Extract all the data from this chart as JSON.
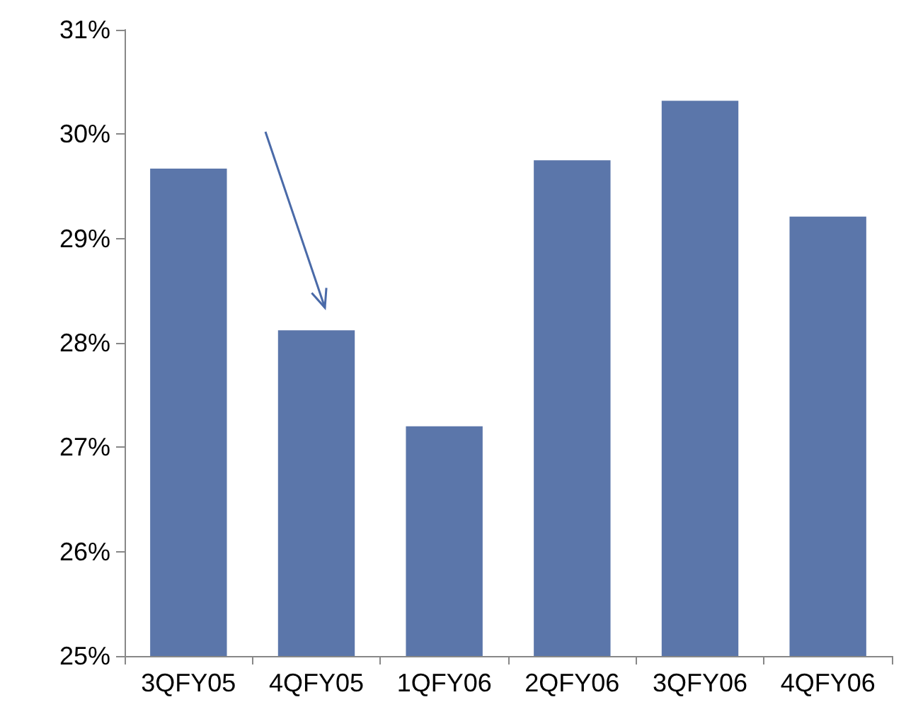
{
  "chart_data": {
    "type": "bar",
    "categories": [
      "3QFY05",
      "4QFY05",
      "1QFY06",
      "2QFY06",
      "3QFY06",
      "4QFY06"
    ],
    "values": [
      29.67,
      28.12,
      27.2,
      29.75,
      30.32,
      29.21
    ],
    "color": "#5b76aa",
    "ylim": [
      25,
      31
    ],
    "yticks": [
      {
        "value": 25,
        "label": "25%"
      },
      {
        "value": 26,
        "label": "26%"
      },
      {
        "value": 27,
        "label": "27%"
      },
      {
        "value": 28,
        "label": "28%"
      },
      {
        "value": 29,
        "label": "29%"
      },
      {
        "value": 30,
        "label": "30%"
      },
      {
        "value": 31,
        "label": "31%"
      }
    ],
    "grid": false
  }
}
